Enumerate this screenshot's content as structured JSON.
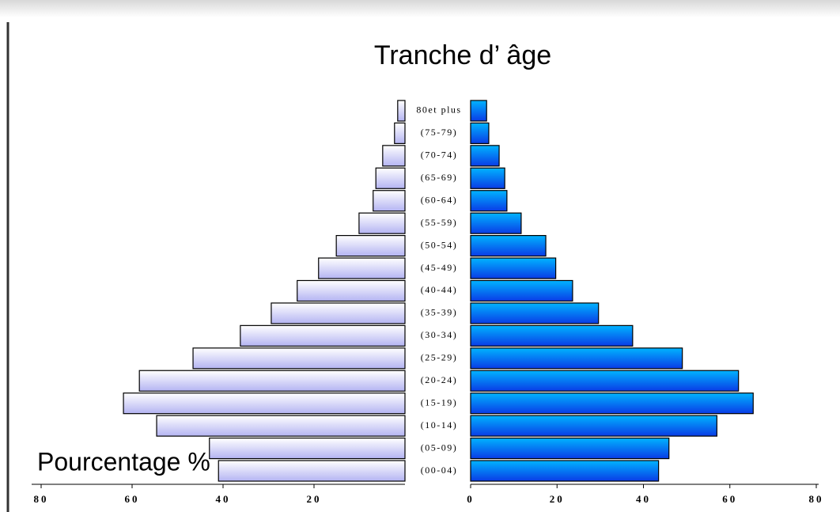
{
  "chart_data": {
    "type": "pyramid",
    "title": "Tranche d’ âge",
    "annotation": "Pourcentage %",
    "categories": [
      "(00-04)",
      "(05-09)",
      "(10-14)",
      "(15-19)",
      "(20-24)",
      "(25-29)",
      "(30-34)",
      "(35-39)",
      "(40-44)",
      "(45-49)",
      "(50-54)",
      "(55-59)",
      "(60-64)",
      "(65-69)",
      "(70-74)",
      "(75-79)",
      "80et plus"
    ],
    "series": [
      {
        "color": "#b4b4f2",
        "side": "left",
        "values": [
          41.0,
          43.0,
          54.6,
          61.9,
          58.4,
          46.6,
          36.2,
          29.4,
          23.7,
          19.0,
          15.1,
          10.1,
          7.0,
          6.4,
          4.9,
          2.3,
          1.6
        ]
      },
      {
        "color": "#0a3ce6",
        "side": "right",
        "values": [
          43.5,
          45.9,
          57.0,
          65.4,
          62.0,
          49.0,
          37.5,
          29.6,
          23.6,
          19.7,
          17.4,
          11.7,
          8.4,
          7.9,
          6.6,
          4.2,
          3.7
        ]
      }
    ],
    "xlim_left": [
      0,
      80
    ],
    "xticks_left": [
      20,
      40,
      60,
      80
    ],
    "xlim_right": [
      0,
      80
    ],
    "xticks_right": [
      0,
      20,
      40,
      60,
      80
    ]
  }
}
